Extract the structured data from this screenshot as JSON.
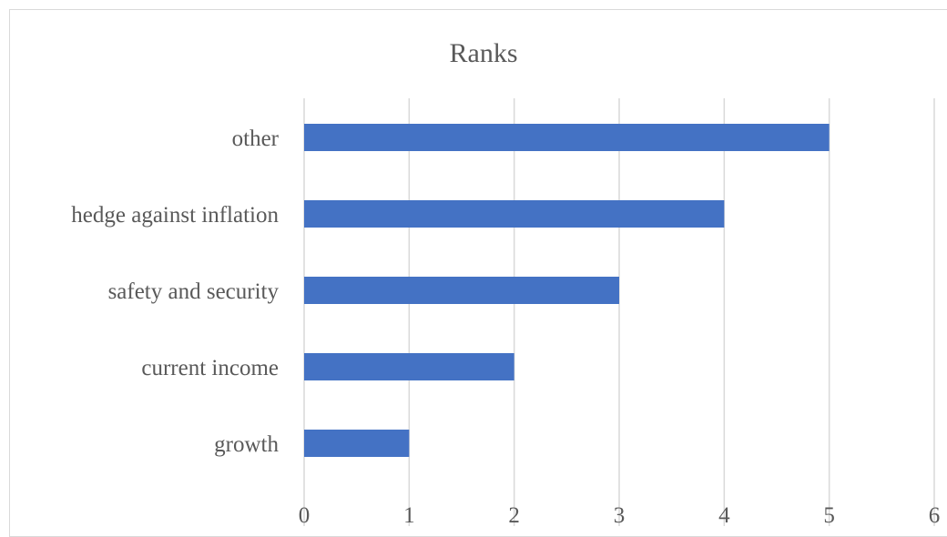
{
  "chart_data": {
    "type": "bar",
    "orientation": "horizontal",
    "title": "Ranks",
    "categories": [
      "other",
      "hedge against inflation",
      "safety and security",
      "current income",
      "growth"
    ],
    "values": [
      5,
      4,
      3,
      2,
      1
    ],
    "xlim": [
      0,
      6
    ],
    "xticks": [
      "0",
      "1",
      "2",
      "3",
      "4",
      "5",
      "6"
    ],
    "grid": true,
    "legend": "none",
    "colors": {
      "bar": "#4472c4",
      "grid": "#d9d9d9",
      "text": "#595959"
    }
  }
}
